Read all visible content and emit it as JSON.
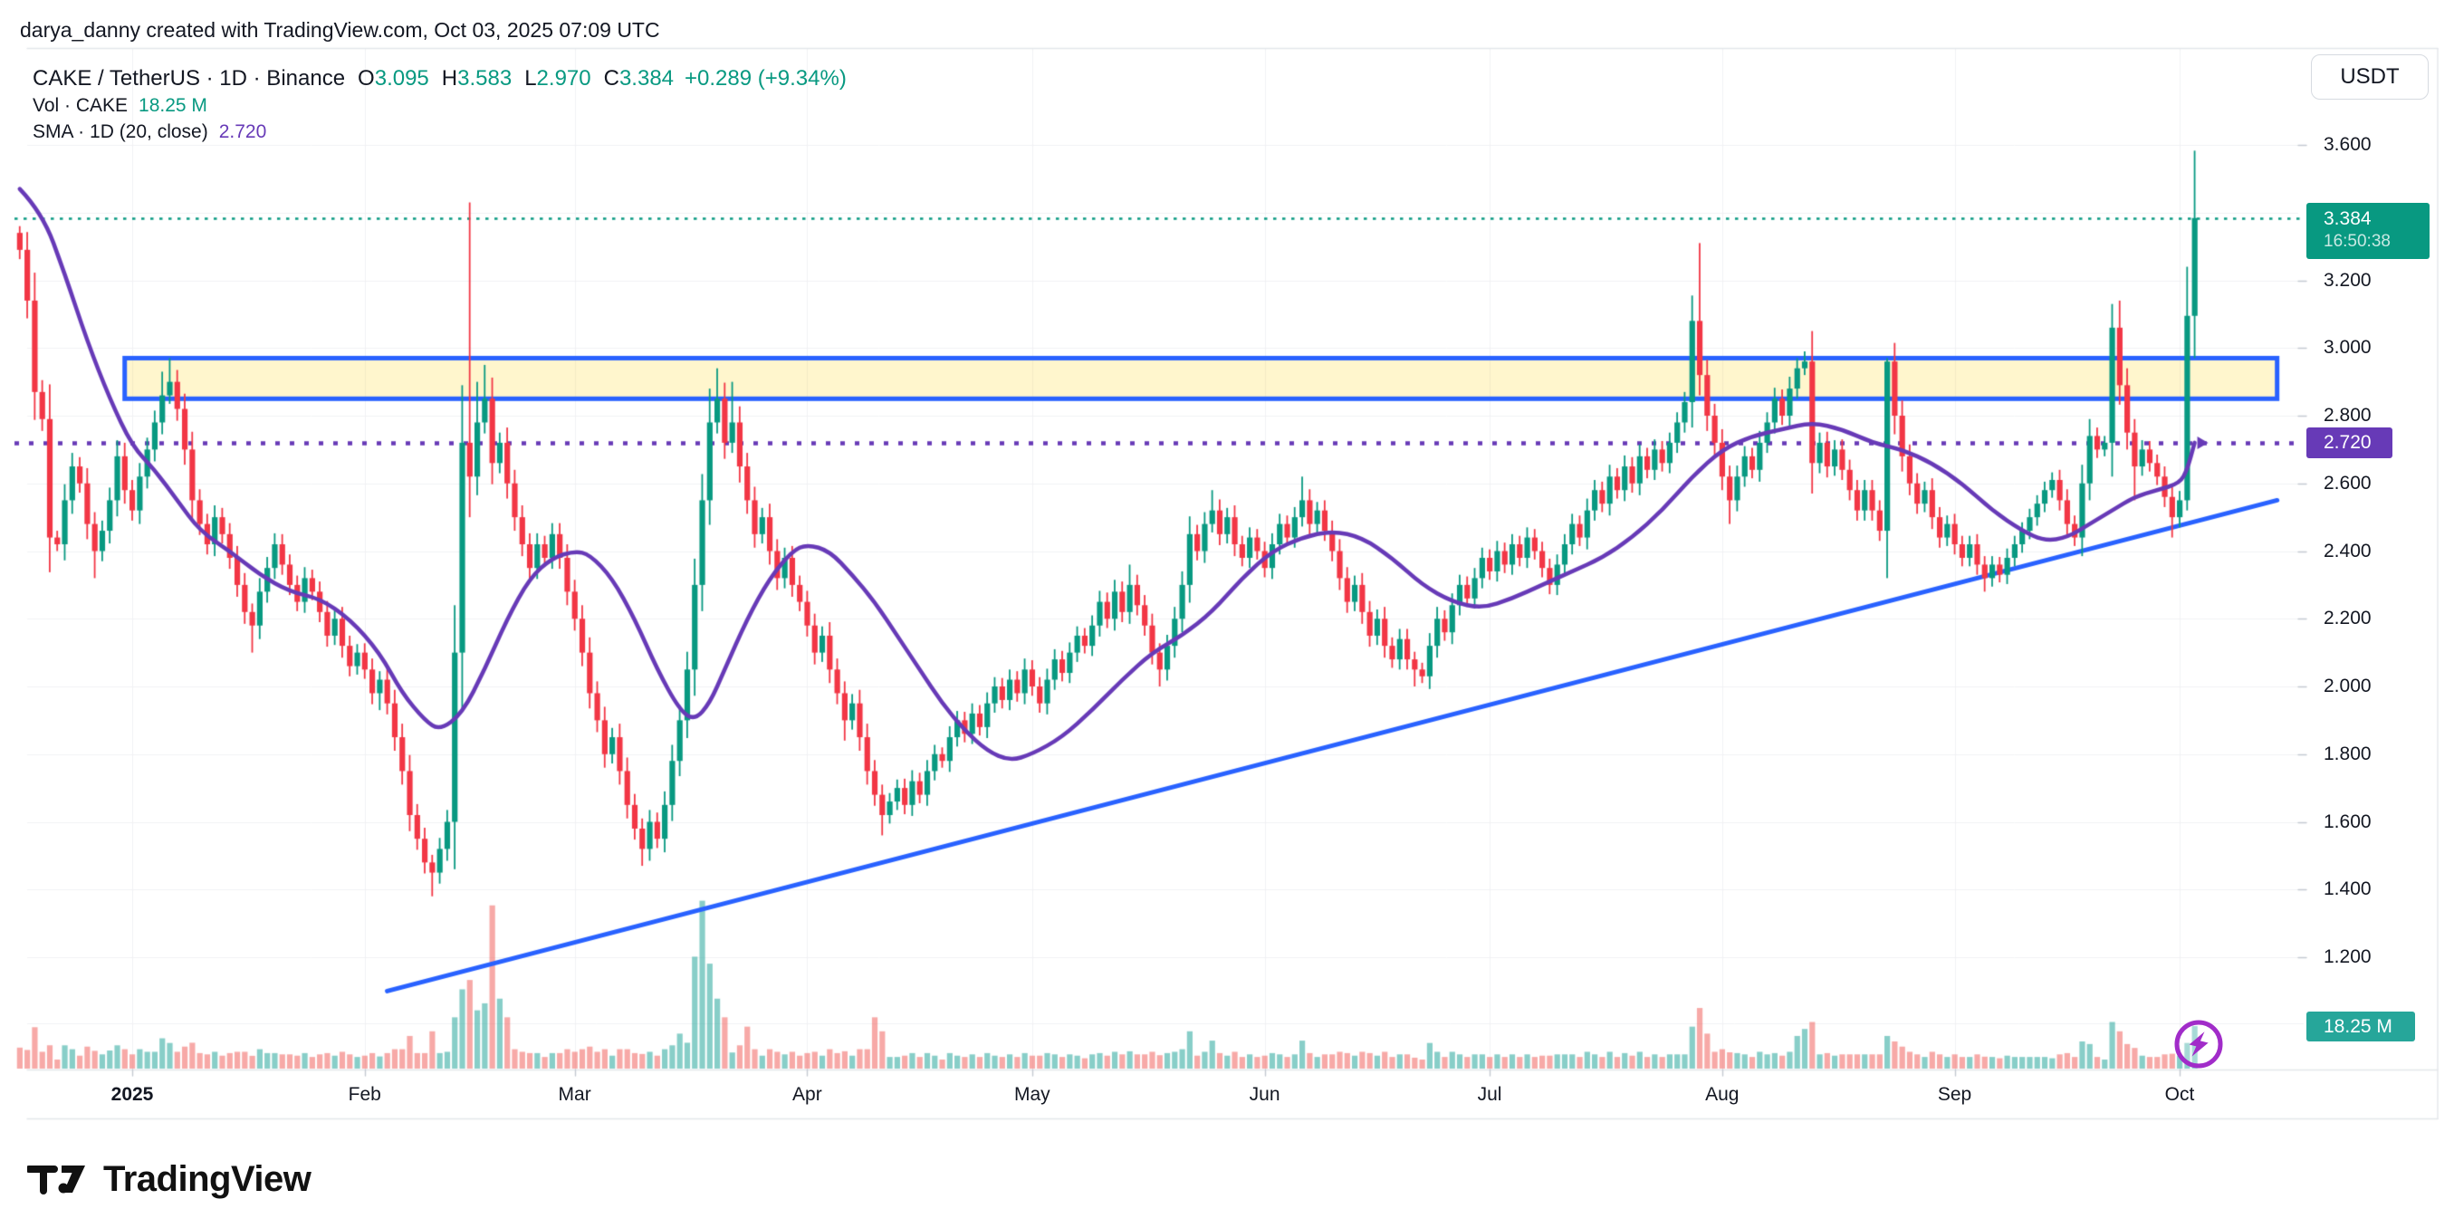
{
  "header": {
    "attribution": "darya_danny created with TradingView.com, Oct 03, 2025 07:09 UTC"
  },
  "legend": {
    "symbol_line": "CAKE / TetherUS · 1D · Binance",
    "ohlc": {
      "o_label": "O",
      "o": "3.095",
      "h_label": "H",
      "h": "3.583",
      "l_label": "L",
      "l": "2.970",
      "c_label": "C",
      "c": "3.384",
      "change": "+0.289 (+9.34%)"
    },
    "volume_row": {
      "label": "Vol · CAKE",
      "value": "18.25 M"
    },
    "sma_row": {
      "label": "SMA · 1D (20, close)",
      "value": "2.720"
    }
  },
  "price_scale": {
    "currency_button": "USDT",
    "price_badge": {
      "price": "3.384",
      "countdown": "16:50:38"
    },
    "sma_badge": "2.720",
    "volume_badge": "18.25 M"
  },
  "footer": {
    "brand": "TradingView"
  },
  "colors": {
    "up": "#089981",
    "down": "#f23645",
    "vol_up": "rgba(38,166,154,0.55)",
    "vol_down": "rgba(239,83,80,0.5)",
    "sma": "#673ab7",
    "drawing_blue": "#2962ff",
    "zone_fill": "rgba(255,221,77,0.28)",
    "price_line": "#089981",
    "badge_price_bg": "#089981",
    "badge_sma_bg": "#673ab7",
    "badge_vol_bg": "#26a69a",
    "flash": "#a12cc9",
    "text": "#131722",
    "grid": "#f0f2f4",
    "border": "#e3e6ea",
    "tick": "#c4c9d1"
  },
  "chart_data": {
    "type": "candlestick",
    "title": "CAKE / TetherUS · 1D · Binance",
    "symbol": "CAKE/USDT",
    "exchange": "Binance",
    "timeframe": "1D",
    "legend_note": "grid on, price scale right, volume overlay bottom",
    "start_date": "2024-12-17",
    "first_open": 3.34,
    "ylim": [
      1.08,
      3.89
    ],
    "y_ticks": [
      {
        "value": 3.6,
        "label": "3.600"
      },
      {
        "value": 3.4,
        "label": ""
      },
      {
        "value": 3.2,
        "label": "3.200"
      },
      {
        "value": 3.0,
        "label": "3.000"
      },
      {
        "value": 2.8,
        "label": "2.800"
      },
      {
        "value": 2.6,
        "label": "2.600"
      },
      {
        "value": 2.4,
        "label": "2.400"
      },
      {
        "value": 2.2,
        "label": "2.200"
      },
      {
        "value": 2.0,
        "label": "2.000"
      },
      {
        "value": 1.8,
        "label": "1.800"
      },
      {
        "value": 1.6,
        "label": "1.600"
      },
      {
        "value": 1.4,
        "label": "1.400"
      },
      {
        "value": 1.2,
        "label": "1.200"
      }
    ],
    "x_ticks": [
      {
        "date": "2025-01-01",
        "label": "2025",
        "bold": true
      },
      {
        "date": "2025-02-01",
        "label": "Feb"
      },
      {
        "date": "2025-03-01",
        "label": "Mar"
      },
      {
        "date": "2025-04-01",
        "label": "Apr"
      },
      {
        "date": "2025-05-01",
        "label": "May"
      },
      {
        "date": "2025-06-01",
        "label": "Jun"
      },
      {
        "date": "2025-07-01",
        "label": "Jul"
      },
      {
        "date": "2025-08-01",
        "label": "Aug"
      },
      {
        "date": "2025-09-01",
        "label": "Sep"
      },
      {
        "date": "2025-10-01",
        "label": "Oct"
      }
    ],
    "closes": [
      3.29,
      3.14,
      2.87,
      2.79,
      2.44,
      2.42,
      2.55,
      2.65,
      2.6,
      2.48,
      2.4,
      2.46,
      2.55,
      2.68,
      2.58,
      2.52,
      2.62,
      2.7,
      2.78,
      2.86,
      2.9,
      2.82,
      2.7,
      2.55,
      2.48,
      2.42,
      2.5,
      2.45,
      2.38,
      2.3,
      2.22,
      2.18,
      2.28,
      2.35,
      2.42,
      2.36,
      2.3,
      2.25,
      2.32,
      2.28,
      2.22,
      2.15,
      2.2,
      2.12,
      2.06,
      2.1,
      2.05,
      1.98,
      2.02,
      1.95,
      1.85,
      1.75,
      1.62,
      1.55,
      1.48,
      1.45,
      1.52,
      1.6,
      2.1,
      2.72,
      2.62,
      2.78,
      2.85,
      2.66,
      2.72,
      2.6,
      2.5,
      2.42,
      2.35,
      2.42,
      2.38,
      2.45,
      2.38,
      2.28,
      2.2,
      2.1,
      1.98,
      1.9,
      1.8,
      1.85,
      1.75,
      1.65,
      1.58,
      1.52,
      1.6,
      1.55,
      1.65,
      1.78,
      1.9,
      2.05,
      2.3,
      2.55,
      2.78,
      2.85,
      2.72,
      2.78,
      2.65,
      2.55,
      2.45,
      2.5,
      2.4,
      2.32,
      2.38,
      2.3,
      2.25,
      2.18,
      2.1,
      2.15,
      2.05,
      1.98,
      1.9,
      1.95,
      1.85,
      1.75,
      1.68,
      1.62,
      1.66,
      1.7,
      1.65,
      1.72,
      1.68,
      1.75,
      1.8,
      1.78,
      1.85,
      1.9,
      1.86,
      1.92,
      1.88,
      1.95,
      2.0,
      1.96,
      2.02,
      1.98,
      2.05,
      2.0,
      1.95,
      2.02,
      2.08,
      2.04,
      2.1,
      2.15,
      2.12,
      2.18,
      2.25,
      2.2,
      2.28,
      2.22,
      2.3,
      2.24,
      2.18,
      2.1,
      2.05,
      2.12,
      2.2,
      2.3,
      2.45,
      2.4,
      2.48,
      2.52,
      2.45,
      2.5,
      2.42,
      2.38,
      2.44,
      2.4,
      2.35,
      2.42,
      2.48,
      2.44,
      2.5,
      2.55,
      2.48,
      2.52,
      2.46,
      2.4,
      2.32,
      2.25,
      2.3,
      2.22,
      2.15,
      2.2,
      2.12,
      2.08,
      2.14,
      2.08,
      2.05,
      2.03,
      2.12,
      2.2,
      2.16,
      2.24,
      2.3,
      2.26,
      2.32,
      2.38,
      2.34,
      2.4,
      2.36,
      2.42,
      2.38,
      2.44,
      2.4,
      2.35,
      2.3,
      2.36,
      2.42,
      2.48,
      2.44,
      2.52,
      2.58,
      2.54,
      2.62,
      2.58,
      2.65,
      2.6,
      2.68,
      2.64,
      2.7,
      2.66,
      2.72,
      2.78,
      2.84,
      3.08,
      2.92,
      2.8,
      2.72,
      2.62,
      2.55,
      2.62,
      2.68,
      2.64,
      2.72,
      2.78,
      2.85,
      2.8,
      2.88,
      2.94,
      2.96,
      2.66,
      2.72,
      2.65,
      2.7,
      2.64,
      2.58,
      2.52,
      2.58,
      2.52,
      2.46,
      2.96,
      2.8,
      2.68,
      2.6,
      2.54,
      2.58,
      2.5,
      2.44,
      2.48,
      2.42,
      2.38,
      2.42,
      2.36,
      2.32,
      2.36,
      2.33,
      2.38,
      2.42,
      2.46,
      2.5,
      2.54,
      2.58,
      2.61,
      2.55,
      2.48,
      2.44,
      2.6,
      2.74,
      2.7,
      2.72,
      3.06,
      2.89,
      2.75,
      2.65,
      2.7,
      2.66,
      2.62,
      2.56,
      2.5,
      2.55,
      3.095,
      3.384
    ],
    "wick_overrides": {
      "2024-12-17": [
        3.36,
        null
      ],
      "2024-12-27": [
        null,
        2.32
      ],
      "2025-01-05": [
        2.93,
        null
      ],
      "2025-01-06": [
        2.97,
        null
      ],
      "2025-01-17": [
        null,
        2.1
      ],
      "2025-02-03": [
        null,
        1.93
      ],
      "2025-02-10": [
        null,
        1.38
      ],
      "2025-02-15": [
        3.43,
        2.5
      ],
      "2025-02-16": [
        2.9,
        null
      ],
      "2025-02-17": [
        2.95,
        null
      ],
      "2025-03-10": [
        null,
        1.47
      ],
      "2025-03-19": [
        2.88,
        null
      ],
      "2025-03-20": [
        2.94,
        null
      ],
      "2025-03-22": [
        2.9,
        null
      ],
      "2025-04-06": [
        null,
        1.84
      ],
      "2025-04-11": [
        null,
        1.56
      ],
      "2025-05-14": [
        2.36,
        null
      ],
      "2025-05-18": [
        null,
        2.0
      ],
      "2025-05-25": [
        2.58,
        null
      ],
      "2025-06-06": [
        2.62,
        null
      ],
      "2025-06-21": [
        null,
        2.0
      ],
      "2025-07-29": [
        3.31,
        2.86
      ],
      "2025-08-02": [
        null,
        2.48
      ],
      "2025-08-12": [
        2.99,
        null
      ],
      "2025-08-23": [
        2.97,
        null
      ],
      "2025-09-05": [
        null,
        2.28
      ],
      "2025-09-22": [
        3.13,
        null
      ],
      "2025-09-23": [
        3.14,
        null
      ],
      "2025-09-25": [
        null,
        2.55
      ],
      "2025-09-30": [
        null,
        2.44
      ],
      "2025-10-01": [
        null,
        2.47
      ],
      "2025-10-02": [
        3.24,
        2.52
      ],
      "2025-10-03": [
        3.583,
        2.97
      ]
    },
    "last_candle": {
      "date": "2025-10-03",
      "o": 3.095,
      "h": 3.583,
      "l": 2.97,
      "c": 3.384,
      "volume_m": 18.25
    },
    "volume_overrides_m": {
      "2024-12-17": 9,
      "2024-12-18": 8,
      "2024-12-21": 10,
      "2025-01-05": 13,
      "2025-01-06": 11,
      "2025-02-07": 14,
      "2025-02-10": 16,
      "2025-02-13": 22,
      "2025-02-14": 34,
      "2025-02-15": 38,
      "2025-02-16": 25,
      "2025-02-17": 28,
      "2025-02-18": 70,
      "2025-02-19": 30,
      "2025-02-20": 22,
      "2025-03-15": 15,
      "2025-03-17": 48,
      "2025-03-18": 72,
      "2025-03-19": 45,
      "2025-03-20": 30,
      "2025-03-21": 22,
      "2025-03-24": 18,
      "2025-04-10": 22,
      "2025-04-11": 16,
      "2025-05-22": 16,
      "2025-05-25": 12,
      "2025-06-06": 12,
      "2025-06-23": 11,
      "2025-07-28": 18,
      "2025-07-29": 26,
      "2025-07-30": 15,
      "2025-08-11": 14,
      "2025-08-12": 17,
      "2025-08-13": 20,
      "2025-08-23": 14,
      "2025-09-22": 20,
      "2025-09-23": 16,
      "2025-10-02": 11,
      "2025-10-03": 18.25
    },
    "sma": {
      "period": 20,
      "source": "close",
      "current": 2.72,
      "path": [
        [
          "2024-12-17",
          3.47
        ],
        [
          "2024-12-20",
          3.4
        ],
        [
          "2024-12-23",
          3.22
        ],
        [
          "2024-12-26",
          3.02
        ],
        [
          "2024-12-29",
          2.85
        ],
        [
          "2025-01-01",
          2.71
        ],
        [
          "2025-01-04",
          2.64
        ],
        [
          "2025-01-07",
          2.55
        ],
        [
          "2025-01-10",
          2.46
        ],
        [
          "2025-01-14",
          2.4
        ],
        [
          "2025-01-18",
          2.33
        ],
        [
          "2025-01-22",
          2.28
        ],
        [
          "2025-01-26",
          2.26
        ],
        [
          "2025-01-30",
          2.2
        ],
        [
          "2025-02-03",
          2.1
        ],
        [
          "2025-02-06",
          1.98
        ],
        [
          "2025-02-09",
          1.9
        ],
        [
          "2025-02-11",
          1.87
        ],
        [
          "2025-02-14",
          1.92
        ],
        [
          "2025-02-17",
          2.05
        ],
        [
          "2025-02-20",
          2.2
        ],
        [
          "2025-02-23",
          2.32
        ],
        [
          "2025-02-26",
          2.38
        ],
        [
          "2025-03-01",
          2.4
        ],
        [
          "2025-03-03",
          2.39
        ],
        [
          "2025-03-06",
          2.32
        ],
        [
          "2025-03-09",
          2.2
        ],
        [
          "2025-03-12",
          2.05
        ],
        [
          "2025-03-15",
          1.93
        ],
        [
          "2025-03-17",
          1.9
        ],
        [
          "2025-03-19",
          1.95
        ],
        [
          "2025-03-21",
          2.05
        ],
        [
          "2025-03-24",
          2.2
        ],
        [
          "2025-03-27",
          2.32
        ],
        [
          "2025-03-30",
          2.4
        ],
        [
          "2025-04-01",
          2.42
        ],
        [
          "2025-04-04",
          2.4
        ],
        [
          "2025-04-07",
          2.33
        ],
        [
          "2025-04-10",
          2.25
        ],
        [
          "2025-04-13",
          2.15
        ],
        [
          "2025-04-16",
          2.05
        ],
        [
          "2025-04-19",
          1.95
        ],
        [
          "2025-04-22",
          1.87
        ],
        [
          "2025-04-25",
          1.81
        ],
        [
          "2025-04-28",
          1.78
        ],
        [
          "2025-05-01",
          1.8
        ],
        [
          "2025-05-05",
          1.85
        ],
        [
          "2025-05-09",
          1.93
        ],
        [
          "2025-05-13",
          2.02
        ],
        [
          "2025-05-17",
          2.1
        ],
        [
          "2025-05-21",
          2.15
        ],
        [
          "2025-05-25",
          2.22
        ],
        [
          "2025-05-29",
          2.32
        ],
        [
          "2025-06-02",
          2.4
        ],
        [
          "2025-06-06",
          2.44
        ],
        [
          "2025-06-10",
          2.46
        ],
        [
          "2025-06-14",
          2.44
        ],
        [
          "2025-06-18",
          2.38
        ],
        [
          "2025-06-22",
          2.3
        ],
        [
          "2025-06-26",
          2.25
        ],
        [
          "2025-06-30",
          2.23
        ],
        [
          "2025-07-04",
          2.26
        ],
        [
          "2025-07-08",
          2.3
        ],
        [
          "2025-07-12",
          2.34
        ],
        [
          "2025-07-16",
          2.38
        ],
        [
          "2025-07-20",
          2.44
        ],
        [
          "2025-07-24",
          2.52
        ],
        [
          "2025-07-28",
          2.62
        ],
        [
          "2025-08-01",
          2.7
        ],
        [
          "2025-08-05",
          2.74
        ],
        [
          "2025-08-09",
          2.76
        ],
        [
          "2025-08-13",
          2.78
        ],
        [
          "2025-08-17",
          2.76
        ],
        [
          "2025-08-21",
          2.72
        ],
        [
          "2025-08-25",
          2.7
        ],
        [
          "2025-08-29",
          2.66
        ],
        [
          "2025-09-02",
          2.6
        ],
        [
          "2025-09-06",
          2.52
        ],
        [
          "2025-09-10",
          2.46
        ],
        [
          "2025-09-13",
          2.43
        ],
        [
          "2025-09-16",
          2.44
        ],
        [
          "2025-09-19",
          2.48
        ],
        [
          "2025-09-22",
          2.52
        ],
        [
          "2025-09-25",
          2.56
        ],
        [
          "2025-09-28",
          2.58
        ],
        [
          "2025-10-01",
          2.6
        ],
        [
          "2025-10-02",
          2.64
        ],
        [
          "2025-10-03",
          2.72
        ]
      ]
    },
    "overlays": {
      "resistance_zone": {
        "from": "2024-12-31",
        "to": "2025-10-14",
        "top": 2.97,
        "bottom": 2.85
      },
      "trendline": {
        "from": {
          "date": "2025-02-04",
          "price": 1.1
        },
        "to": {
          "date": "2025-10-14",
          "price": 2.55
        }
      },
      "price_line": 3.384,
      "sma_line": 2.72
    },
    "volume_axis": {
      "last_value_m": 18.25,
      "unit": "M CAKE"
    }
  }
}
